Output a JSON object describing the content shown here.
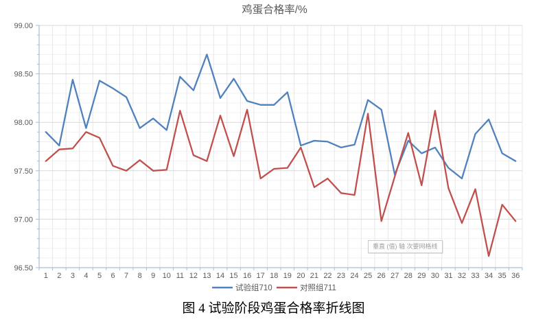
{
  "chart_data": {
    "type": "line",
    "title": "鸡蛋合格率/%",
    "x": [
      1,
      2,
      3,
      4,
      5,
      6,
      7,
      8,
      9,
      10,
      11,
      12,
      13,
      14,
      15,
      16,
      17,
      18,
      19,
      20,
      21,
      22,
      23,
      24,
      25,
      26,
      27,
      28,
      29,
      30,
      31,
      32,
      33,
      34,
      35,
      36
    ],
    "series": [
      {
        "name": "试验组710",
        "color": "#4F81BD",
        "values": [
          97.9,
          97.76,
          98.44,
          97.94,
          98.43,
          98.35,
          98.26,
          97.94,
          98.04,
          97.92,
          98.47,
          98.33,
          98.7,
          98.25,
          98.45,
          98.22,
          98.18,
          98.18,
          98.31,
          97.76,
          97.81,
          97.8,
          97.74,
          97.77,
          98.23,
          98.13,
          97.46,
          97.81,
          97.68,
          97.74,
          97.53,
          97.42,
          97.88,
          98.03,
          97.68,
          97.6
        ]
      },
      {
        "name": "对照组711",
        "color": "#C0504D",
        "values": [
          97.6,
          97.72,
          97.73,
          97.9,
          97.84,
          97.55,
          97.5,
          97.61,
          97.5,
          97.51,
          98.12,
          97.66,
          97.6,
          98.07,
          97.65,
          98.13,
          97.42,
          97.52,
          97.53,
          97.74,
          97.33,
          97.42,
          97.27,
          97.25,
          98.09,
          96.98,
          97.44,
          97.89,
          97.35,
          98.12,
          97.32,
          96.96,
          97.31,
          96.62,
          97.15,
          96.98
        ]
      }
    ],
    "ylim": [
      96.5,
      99.0
    ],
    "y_major_step": 0.5,
    "y_minor_step": 0.1,
    "y_label_decimals": 2,
    "grid": {
      "horizontal_major": true,
      "horizontal_minor": true,
      "vertical_per_category": true
    },
    "legend_position": "bottom"
  },
  "tooltip": {
    "text": "垂直 (值) 轴 次要网格线"
  },
  "caption": {
    "text": "图 4 试验阶段鸡蛋合格率折线图"
  },
  "style_colors": {
    "title_text": "#595959",
    "tick_label_text": "#595959",
    "axis_line": "#a7bdd4",
    "grid_major": "#d9d9d9",
    "grid_minor": "#f0f0f0",
    "grid_vertical": "#e8e8e8"
  }
}
